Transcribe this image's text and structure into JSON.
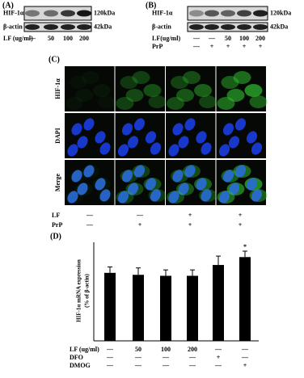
{
  "panel_a": {
    "label": "(A)",
    "rows": [
      "HIF-1α",
      "β-actin"
    ],
    "sizes": [
      "120kDa",
      "42kDa"
    ],
    "treatments": [
      {
        "name": "LF (ug/ml)",
        "lanes": [
          "—",
          "50",
          "100",
          "200"
        ]
      }
    ]
  },
  "panel_b": {
    "label": "(B)",
    "rows": [
      "HIF-1α",
      "β-actin"
    ],
    "sizes": [
      "120kDa",
      "42kDa"
    ],
    "treatments": [
      {
        "name": "LF(ug/ml)",
        "lanes": [
          "—",
          "—",
          "50",
          "100",
          "200"
        ]
      },
      {
        "name": "PrP",
        "lanes": [
          "—",
          "+",
          "+",
          "+",
          "+"
        ]
      }
    ]
  },
  "panel_c": {
    "label": "(C)",
    "rows": [
      "HIF-1α",
      "DAPI",
      "Merge"
    ],
    "treatments": [
      {
        "name": "LF",
        "lanes": [
          "—",
          "—",
          "+",
          "+"
        ]
      },
      {
        "name": "PrP",
        "lanes": [
          "—",
          "+",
          "+",
          "+"
        ]
      }
    ]
  },
  "chart_data": {
    "type": "bar",
    "label": "(D)",
    "y_label": [
      "HIF-1α mRNA expression",
      "(% of β-actin)"
    ],
    "values": [
      0.69,
      0.67,
      0.66,
      0.66,
      0.77,
      0.85
    ],
    "errors": [
      0.06,
      0.07,
      0.06,
      0.06,
      0.09,
      0.06
    ],
    "color": "#000000",
    "ylim": [
      0,
      1
    ],
    "annotation": "*",
    "conditions": [
      {
        "name": "LF (ug/ml)",
        "lanes": [
          "—",
          "50",
          "100",
          "200",
          "—",
          "—"
        ]
      },
      {
        "name": "DFO",
        "lanes": [
          "—",
          "—",
          "—",
          "—",
          "+",
          "—"
        ]
      },
      {
        "name": "DMOG",
        "lanes": [
          "—",
          "—",
          "—",
          "—",
          "—",
          "+"
        ]
      }
    ]
  }
}
